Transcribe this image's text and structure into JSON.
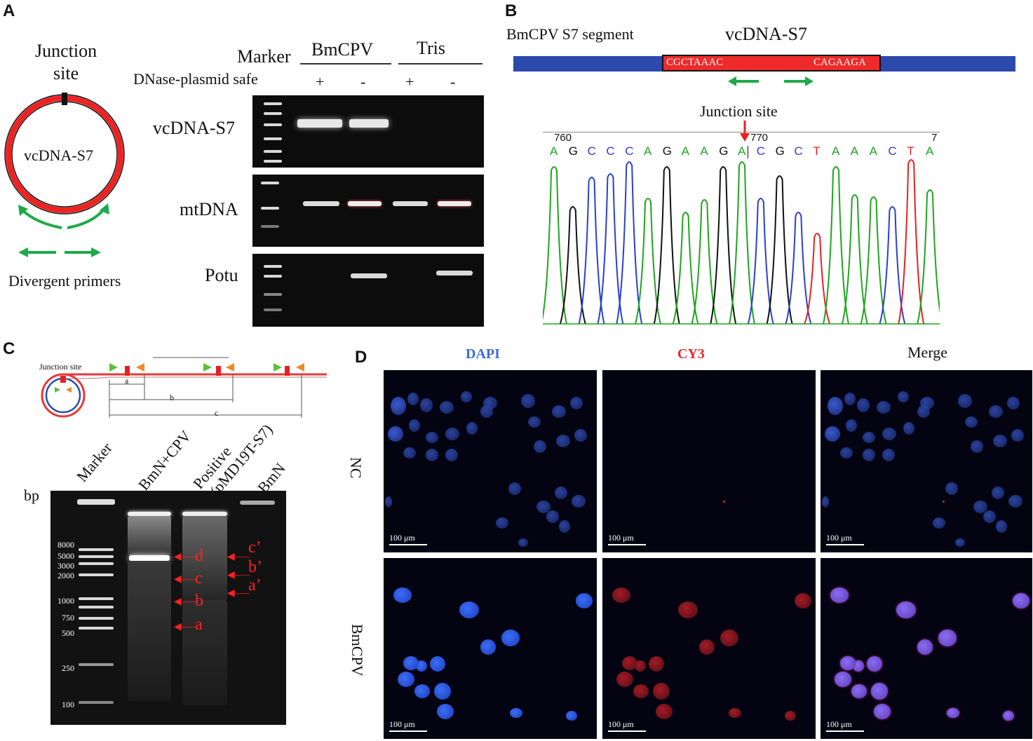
{
  "panel_labels": {
    "a": "A",
    "b": "B",
    "c": "C",
    "d": "D"
  },
  "panelA": {
    "circle_label": "vcDNA-S7",
    "junction_line1": "Junction",
    "junction_line2": "site",
    "primers_label": "Divergent primers",
    "marker_label": "Marker",
    "group1": "BmCPV",
    "group2": "Tris",
    "treatment_label": "DNase-plasmid safe",
    "signs": [
      "+",
      "-",
      "+",
      "-"
    ],
    "rows": [
      "vcDNA-S7",
      "mtDNA",
      "Potu"
    ]
  },
  "panelB": {
    "segment_label": "BmCPV S7 segment",
    "title": "vcDNA-S7",
    "seq_left": "CGCTAAAC",
    "seq_right": "CAGAAGA",
    "junction_label": "Junction site",
    "pos1": "760",
    "pos2": "770",
    "pos3": "7",
    "bases": [
      "A",
      "G",
      "C",
      "C",
      "C",
      "A",
      "G",
      "A",
      "A",
      "G",
      "A",
      "C",
      "G",
      "C",
      "T",
      "A",
      "A",
      "A",
      "C",
      "T",
      "A"
    ],
    "colors": {
      "A": "#1ea51e",
      "G": "#111111",
      "C": "#2a3fd0",
      "T": "#e82020"
    }
  },
  "panelC": {
    "junction_label": "Junction site",
    "seg_a": "a",
    "seg_b": "b",
    "seg_c": "c",
    "bp_label": "bp",
    "lanes": [
      "Marker",
      "BmN+CPV",
      "Positive",
      "(pMD19T-S7)",
      "BmN"
    ],
    "ladder": [
      "8000",
      "5000",
      "3000",
      "2000",
      "1000",
      "750",
      "500",
      "250",
      "100"
    ],
    "band_labels": [
      "d",
      "c",
      "b",
      "a",
      "c’",
      "b’",
      "a’"
    ]
  },
  "panelD": {
    "col_labels": [
      "DAPI",
      "CY3",
      "Merge"
    ],
    "row_labels": [
      "NC",
      "BmCPV"
    ],
    "scale": "100 μm"
  }
}
